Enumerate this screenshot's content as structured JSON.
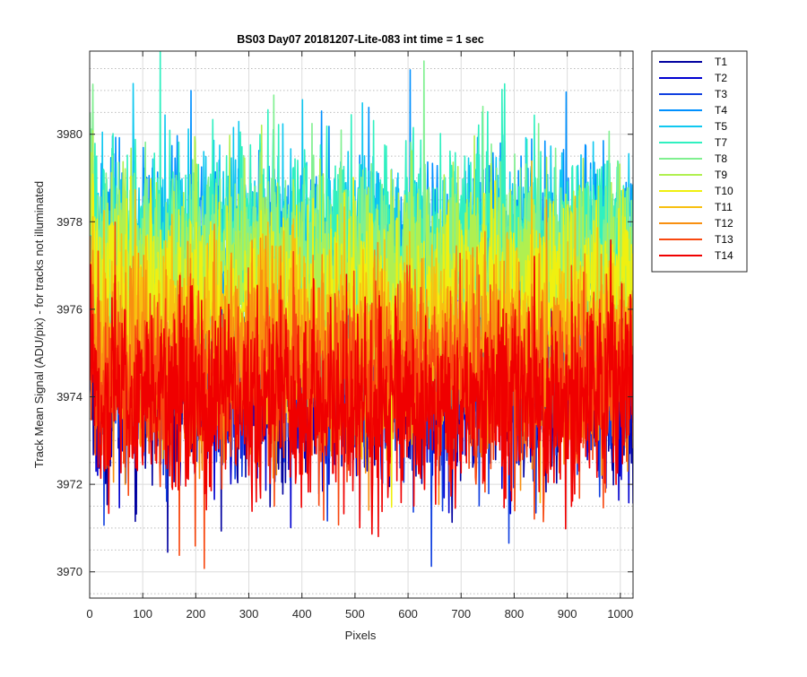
{
  "chart_data": {
    "type": "line",
    "title": "BS03 Day07 20181207-Lite-083 int time = 1 sec",
    "xlabel": "Pixels",
    "ylabel": "Track Mean Signal (ADU/pix) - for tracks not illuminated",
    "xlim": [
      0,
      1024
    ],
    "ylim": [
      3969.4,
      3981.9
    ],
    "xticks": [
      0,
      100,
      200,
      300,
      400,
      500,
      600,
      700,
      800,
      900,
      1000
    ],
    "yticks": [
      3970,
      3972,
      3974,
      3976,
      3978,
      3980
    ],
    "yminor_step": 0.5,
    "grid": true,
    "legend_location": "outside-top-right",
    "series": [
      {
        "name": "T1",
        "color": "#0000A0",
        "center_level": 3974.3,
        "spread": 1.1
      },
      {
        "name": "T2",
        "color": "#0000D0",
        "center_level": 3974.4,
        "spread": 1.1
      },
      {
        "name": "T3",
        "color": "#1040E0",
        "center_level": 3974.5,
        "spread": 1.1
      },
      {
        "name": "T4",
        "color": "#0090FF",
        "center_level": 3977.3,
        "spread": 1.1
      },
      {
        "name": "T5",
        "color": "#10C8F0",
        "center_level": 3977.4,
        "spread": 1.1
      },
      {
        "name": "T7",
        "color": "#30F0C0",
        "center_level": 3977.6,
        "spread": 1.15
      },
      {
        "name": "T8",
        "color": "#80F090",
        "center_level": 3977.2,
        "spread": 1.1
      },
      {
        "name": "T9",
        "color": "#B0F050",
        "center_level": 3976.7,
        "spread": 1.1
      },
      {
        "name": "T10",
        "color": "#F0F010",
        "center_level": 3976.0,
        "spread": 1.1
      },
      {
        "name": "T11",
        "color": "#F8C010",
        "center_level": 3975.3,
        "spread": 1.1
      },
      {
        "name": "T12",
        "color": "#F89010",
        "center_level": 3974.8,
        "spread": 1.1
      },
      {
        "name": "T13",
        "color": "#F84810",
        "center_level": 3974.3,
        "spread": 1.1
      },
      {
        "name": "T14",
        "color": "#F00000",
        "center_level": 3973.9,
        "spread": 1.1
      }
    ]
  }
}
